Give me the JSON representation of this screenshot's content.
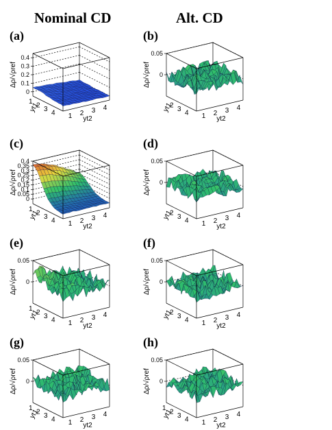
{
  "column_titles": [
    "Nominal CD",
    "Alt. CD"
  ],
  "colors": {
    "low": "#1a3cd6",
    "mid": "#2fc06a",
    "high": "#d93a2a",
    "mesh": "#0a0a3a",
    "frame": "#000000"
  },
  "chart_data": [
    {
      "type": "surface",
      "panel_label": "(a)",
      "zlabel": "Δρ/√ρref",
      "zlim": [
        -0.05,
        0.45
      ],
      "zticks": [
        "0",
        "0.1",
        "0.2",
        "0.3",
        "0.4"
      ],
      "xlabel": "yt2",
      "x_ticks": [
        "1",
        "2",
        "3",
        "4"
      ],
      "ylabel": "yt1",
      "y_ticks": [
        "1",
        "2",
        "3",
        "4"
      ],
      "x_range": [
        0.5,
        4.5
      ],
      "y_range": [
        0.5,
        4.5
      ],
      "surface": "near-zero with slight rise at low yt1, yt2",
      "color_scale": "blue",
      "peak": 0.05
    },
    {
      "type": "surface",
      "panel_label": "(b)",
      "zlabel": "Δρ/√ρref",
      "zlim": [
        -0.05,
        0.05
      ],
      "zticks": [
        "0",
        "0.05"
      ],
      "xlabel": "yt2",
      "x_ticks": [
        "1",
        "2",
        "3",
        "4"
      ],
      "ylabel": "yt1",
      "y_ticks": [
        "2",
        "3",
        "4"
      ],
      "x_range": [
        0.5,
        4.5
      ],
      "y_range": [
        0.5,
        4.5
      ],
      "surface": "fluctuations about zero",
      "color_scale": "green",
      "peak": 0.0
    },
    {
      "type": "surface",
      "panel_label": "(c)",
      "zlabel": "Δρ/√ρref",
      "zlim": [
        -0.05,
        0.4
      ],
      "zticks": [
        "0",
        "0.05",
        "0.1",
        "0.15",
        "0.2",
        "0.25",
        "0.3",
        "0.35",
        "0.4"
      ],
      "xlabel": "yt2",
      "x_ticks": [
        "1",
        "2",
        "3",
        "4"
      ],
      "ylabel": "yt1",
      "y_ticks": [
        "1",
        "2",
        "3",
        "4"
      ],
      "x_range": [
        0.5,
        4.5
      ],
      "y_range": [
        0.5,
        4.5
      ],
      "surface": "peak at low yt1, yt2 falling to zero",
      "color_scale": "rainbow",
      "peak": 0.36
    },
    {
      "type": "surface",
      "panel_label": "(d)",
      "zlabel": "Δρ/√ρref",
      "zlim": [
        -0.05,
        0.05
      ],
      "zticks": [
        "0",
        "0.05"
      ],
      "xlabel": "yt2",
      "x_ticks": [
        "1",
        "2",
        "3",
        "4"
      ],
      "ylabel": "yt1",
      "y_ticks": [
        "2",
        "3",
        "4"
      ],
      "x_range": [
        0.5,
        4.5
      ],
      "y_range": [
        0.5,
        4.5
      ],
      "surface": "fluctuations about zero",
      "color_scale": "green",
      "peak": 0.0
    },
    {
      "type": "surface",
      "panel_label": "(e)",
      "zlabel": "Δρ/√ρref",
      "zlim": [
        -0.05,
        0.05
      ],
      "zticks": [
        "0",
        "0.05"
      ],
      "xlabel": "yt2",
      "x_ticks": [
        "1",
        "2",
        "3",
        "4"
      ],
      "ylabel": "yt1",
      "y_ticks": [
        "1",
        "2",
        "3",
        "4"
      ],
      "x_range": [
        0.5,
        4.5
      ],
      "y_range": [
        0.5,
        4.5
      ],
      "surface": "small bump at low yt1, yt2 with fluctuations",
      "color_scale": "green",
      "peak": 0.02
    },
    {
      "type": "surface",
      "panel_label": "(f)",
      "zlabel": "Δρ/√ρref",
      "zlim": [
        -0.05,
        0.05
      ],
      "zticks": [
        "0",
        "0.05"
      ],
      "xlabel": "yt2",
      "x_ticks": [
        "1",
        "2",
        "3",
        "4"
      ],
      "ylabel": "yt1",
      "y_ticks": [
        "2",
        "3",
        "4"
      ],
      "x_range": [
        0.5,
        4.5
      ],
      "y_range": [
        0.5,
        4.5
      ],
      "surface": "fluctuations about zero",
      "color_scale": "green",
      "peak": 0.0
    },
    {
      "type": "surface",
      "panel_label": "(g)",
      "zlabel": "Δρ/√ρref",
      "zlim": [
        -0.05,
        0.05
      ],
      "zticks": [
        "0",
        "0.05"
      ],
      "xlabel": "yt2",
      "x_ticks": [
        "1",
        "2",
        "3",
        "4"
      ],
      "ylabel": "yt1",
      "y_ticks": [
        "1",
        "2",
        "3",
        "4"
      ],
      "x_range": [
        0.5,
        4.5
      ],
      "y_range": [
        0.5,
        4.5
      ],
      "surface": "fluctuations about zero",
      "color_scale": "green",
      "peak": 0.0
    },
    {
      "type": "surface",
      "panel_label": "(h)",
      "zlabel": "Δρ/√ρref",
      "zlim": [
        -0.05,
        0.05
      ],
      "zticks": [
        "0",
        "0.05"
      ],
      "xlabel": "yt2",
      "x_ticks": [
        "1",
        "2",
        "3",
        "4"
      ],
      "ylabel": "yt1",
      "y_ticks": [
        "1",
        "2",
        "3",
        "4"
      ],
      "x_range": [
        0.5,
        4.5
      ],
      "y_range": [
        0.5,
        4.5
      ],
      "surface": "fluctuations about zero",
      "color_scale": "green",
      "peak": 0.0
    }
  ]
}
